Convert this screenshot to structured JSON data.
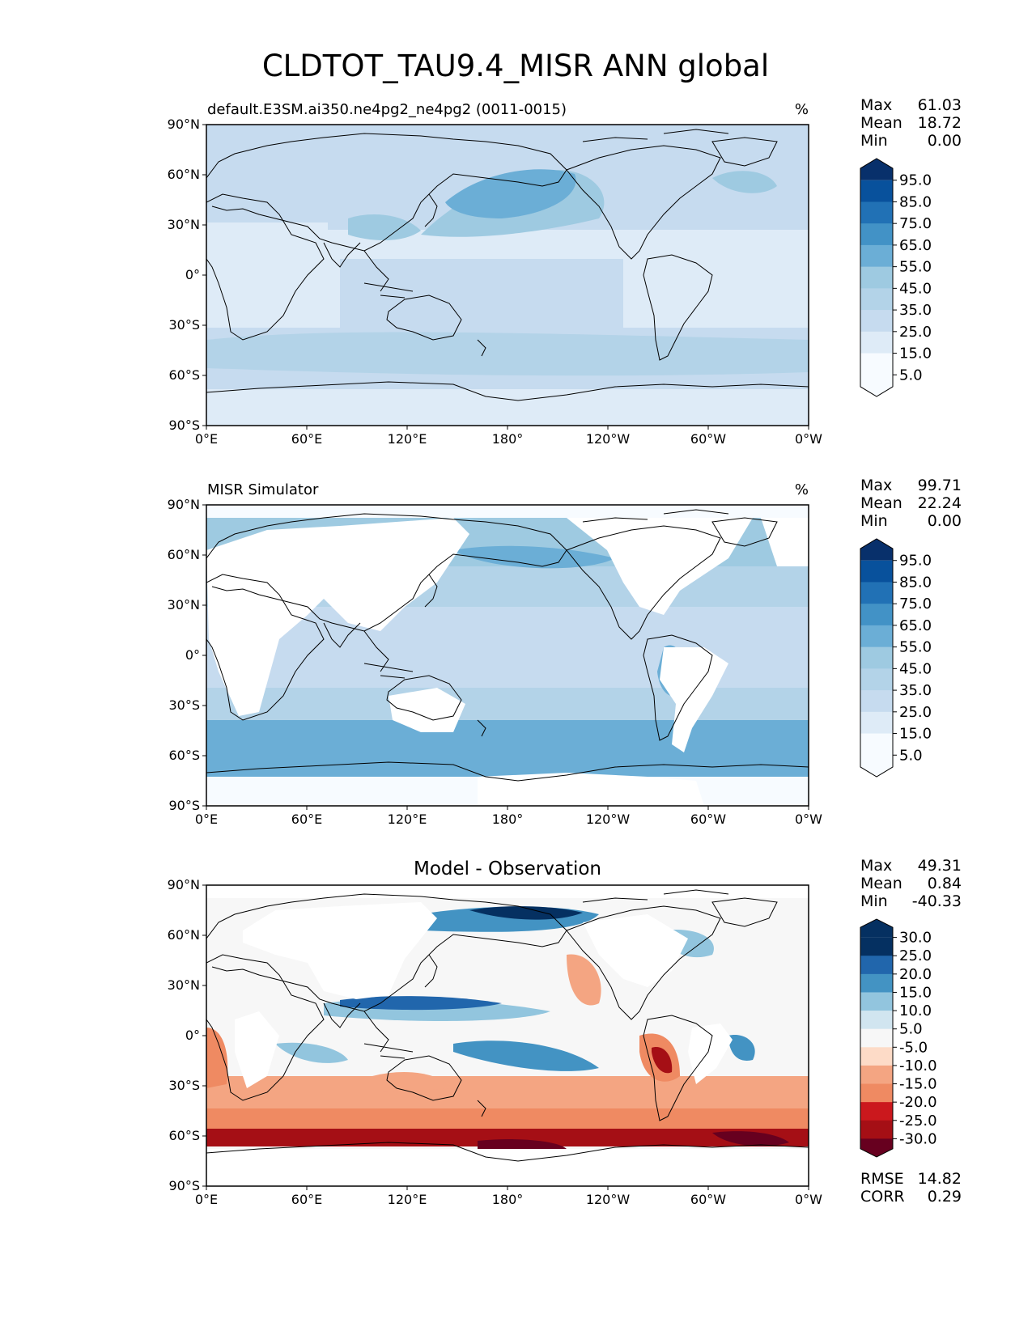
{
  "title": "CLDTOT_TAU9.4_MISR ANN global",
  "colors": {
    "blues": [
      "#f7fbff",
      "#deebf7",
      "#c6dbef",
      "#b3d3e8",
      "#9ecae1",
      "#6baed6",
      "#4292c6",
      "#2171b5",
      "#08519c",
      "#08306b"
    ],
    "diverging": [
      "#67001f",
      "#a50f15",
      "#cb181d",
      "#ef8a62",
      "#f4a582",
      "#fddbc7",
      "#f7f7f7",
      "#d1e5f0",
      "#92c5de",
      "#4393c3",
      "#2166ac",
      "#053061"
    ],
    "land_outline": "#000000"
  },
  "chart_data": [
    {
      "type": "heatmap",
      "map_projection": "PlateCarree",
      "subtitle_left": "default.E3SM.ai350.ne4pg2_ne4pg2 (0011-0015)",
      "subtitle_right": "%",
      "xtick_labels": [
        "0°E",
        "60°E",
        "120°E",
        "180°",
        "120°W",
        "60°W",
        "0°W"
      ],
      "ytick_labels": [
        "90°N",
        "60°N",
        "30°N",
        "0°",
        "30°S",
        "60°S",
        "90°S"
      ],
      "xlim": [
        0,
        360
      ],
      "ylim": [
        -90,
        90
      ],
      "stats": {
        "max_label": "Max",
        "max": "61.03",
        "mean_label": "Mean",
        "mean": "18.72",
        "min_label": "Min",
        "min": "0.00"
      },
      "colorbar_ticks": [
        "95.0",
        "85.0",
        "75.0",
        "65.0",
        "55.0",
        "45.0",
        "35.0",
        "25.0",
        "15.0",
        "5.0"
      ],
      "colorbar_levels": [
        0,
        5,
        10,
        20,
        30,
        40,
        50,
        60,
        70,
        80,
        90,
        100
      ]
    },
    {
      "type": "heatmap",
      "map_projection": "PlateCarree",
      "subtitle_left": "MISR Simulator",
      "subtitle_right": "%",
      "xtick_labels": [
        "0°E",
        "60°E",
        "120°E",
        "180°",
        "120°W",
        "60°W",
        "0°W"
      ],
      "ytick_labels": [
        "90°N",
        "60°N",
        "30°N",
        "0°",
        "30°S",
        "60°S",
        "90°S"
      ],
      "xlim": [
        0,
        360
      ],
      "ylim": [
        -90,
        90
      ],
      "stats": {
        "max_label": "Max",
        "max": "99.71",
        "mean_label": "Mean",
        "mean": "22.24",
        "min_label": "Min",
        "min": "0.00"
      },
      "colorbar_ticks": [
        "95.0",
        "85.0",
        "75.0",
        "65.0",
        "55.0",
        "45.0",
        "35.0",
        "25.0",
        "15.0",
        "5.0"
      ],
      "colorbar_levels": [
        0,
        5,
        10,
        20,
        30,
        40,
        50,
        60,
        70,
        80,
        90,
        100
      ]
    },
    {
      "type": "heatmap",
      "map_projection": "PlateCarree",
      "title": "Model - Observation",
      "xtick_labels": [
        "0°E",
        "60°E",
        "120°E",
        "180°",
        "120°W",
        "60°W",
        "0°W"
      ],
      "ytick_labels": [
        "90°N",
        "60°N",
        "30°N",
        "0°",
        "30°S",
        "60°S",
        "90°S"
      ],
      "xlim": [
        0,
        360
      ],
      "ylim": [
        -90,
        90
      ],
      "stats": {
        "max_label": "Max",
        "max": "49.31",
        "mean_label": "Mean",
        "mean": "0.84",
        "min_label": "Min",
        "min": "-40.33"
      },
      "colorbar_ticks": [
        "30.0",
        "25.0",
        "20.0",
        "15.0",
        "10.0",
        "5.0",
        "-5.0",
        "-10.0",
        "-15.0",
        "-20.0",
        "-25.0",
        "-30.0"
      ],
      "colorbar_levels": [
        -35,
        -30,
        -25,
        -20,
        -15,
        -10,
        -5,
        5,
        10,
        15,
        20,
        25,
        30,
        35
      ],
      "metrics": {
        "rmse_label": "RMSE",
        "rmse": "14.82",
        "corr_label": "CORR",
        "corr": "0.29"
      }
    }
  ]
}
